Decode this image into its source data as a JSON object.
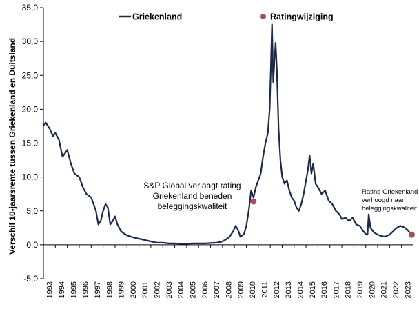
{
  "chart_data": {
    "type": "line",
    "title": "",
    "ylabel": "Verschil 10-jaarsrente tussen Griekenland en Duitsland",
    "xlabel": "",
    "ylim": [
      -5,
      35
    ],
    "yticks": [
      "-5,0",
      "0,0",
      "5,0",
      "10,0",
      "15,0",
      "20,0",
      "25,0",
      "30,0",
      "35,0"
    ],
    "ytick_values": [
      -5,
      0,
      5,
      10,
      15,
      20,
      25,
      30,
      35
    ],
    "xlim": [
      1993,
      2024
    ],
    "xticks": [
      "1993",
      "1994",
      "1995",
      "1996",
      "1997",
      "1998",
      "1999",
      "2000",
      "2001",
      "2002",
      "2003",
      "2004",
      "2005",
      "2006",
      "2007",
      "2008",
      "2009",
      "2010",
      "2011",
      "2012",
      "2013",
      "2014",
      "2015",
      "2016",
      "2017",
      "2018",
      "2019",
      "2020",
      "2021",
      "2022",
      "2023"
    ],
    "grid": false,
    "legend": "top-left",
    "colors": {
      "line": "#1b2a4a",
      "marker": "#a0505e"
    },
    "series": [
      {
        "name": "Griekenland",
        "x": [
          1993.0,
          1993.2,
          1993.5,
          1993.8,
          1994.0,
          1994.3,
          1994.6,
          1994.8,
          1995.0,
          1995.3,
          1995.6,
          1996.0,
          1996.3,
          1996.6,
          1997.0,
          1997.2,
          1997.4,
          1997.6,
          1997.8,
          1998.0,
          1998.2,
          1998.4,
          1998.6,
          1998.8,
          1999.0,
          1999.2,
          1999.5,
          1999.8,
          2000.0,
          2000.5,
          2001.0,
          2001.5,
          2002.0,
          2002.5,
          2003.0,
          2003.5,
          2004.0,
          2004.5,
          2005.0,
          2005.5,
          2006.0,
          2006.5,
          2007.0,
          2007.5,
          2008.0,
          2008.3,
          2008.6,
          2008.9,
          2009.1,
          2009.3,
          2009.5,
          2009.8,
          2010.0,
          2010.2,
          2010.4,
          2010.6,
          2010.8,
          2011.0,
          2011.2,
          2011.4,
          2011.6,
          2011.8,
          2011.95,
          2012.05,
          2012.15,
          2012.25,
          2012.35,
          2012.45,
          2012.55,
          2012.7,
          2012.85,
          2013.0,
          2013.2,
          2013.4,
          2013.6,
          2013.8,
          2014.0,
          2014.2,
          2014.4,
          2014.6,
          2014.8,
          2015.0,
          2015.15,
          2015.3,
          2015.45,
          2015.6,
          2015.8,
          2016.0,
          2016.3,
          2016.6,
          2016.9,
          2017.2,
          2017.5,
          2017.8,
          2018.0,
          2018.3,
          2018.6,
          2018.9,
          2019.2,
          2019.5,
          2019.8,
          2020.0,
          2020.15,
          2020.25,
          2020.4,
          2020.7,
          2021.0,
          2021.3,
          2021.6,
          2022.0,
          2022.3,
          2022.6,
          2022.9,
          2023.2,
          2023.5,
          2023.8
        ],
        "values": [
          17.6,
          18.0,
          17.2,
          16.0,
          16.5,
          15.5,
          13.0,
          13.5,
          14.0,
          12.0,
          10.5,
          10.0,
          8.5,
          7.5,
          7.0,
          6.0,
          5.0,
          3.0,
          3.5,
          5.0,
          6.0,
          5.5,
          3.0,
          3.5,
          4.2,
          3.0,
          2.0,
          1.6,
          1.4,
          1.1,
          0.9,
          0.7,
          0.5,
          0.3,
          0.3,
          0.2,
          0.2,
          0.15,
          0.15,
          0.2,
          0.2,
          0.2,
          0.25,
          0.3,
          0.5,
          0.8,
          1.2,
          2.0,
          2.8,
          2.2,
          1.2,
          1.6,
          2.8,
          5.0,
          8.0,
          7.0,
          8.5,
          9.5,
          10.5,
          13.0,
          15.0,
          16.5,
          20.0,
          26.0,
          32.5,
          24.0,
          27.0,
          29.8,
          26.0,
          17.0,
          12.5,
          10.0,
          9.0,
          9.5,
          8.0,
          7.0,
          6.5,
          5.5,
          5.0,
          6.0,
          7.5,
          9.5,
          11.0,
          13.2,
          10.5,
          12.0,
          9.0,
          8.5,
          7.5,
          8.0,
          6.5,
          6.0,
          5.0,
          4.5,
          3.8,
          4.0,
          3.5,
          4.0,
          3.0,
          2.8,
          2.0,
          1.6,
          1.5,
          4.5,
          2.5,
          1.8,
          1.5,
          1.3,
          1.2,
          1.5,
          2.0,
          2.5,
          2.8,
          2.6,
          2.2,
          1.6
        ]
      }
    ],
    "markers": [
      {
        "name": "Ratingwijziging",
        "x": 2010.6,
        "y": 6.4
      },
      {
        "name": "Ratingwijziging",
        "x": 2023.85,
        "y": 1.5
      }
    ],
    "legend_entries": [
      {
        "label": "Griekenland",
        "kind": "line"
      },
      {
        "label": "Ratingwijziging",
        "kind": "marker"
      }
    ],
    "annotations": [
      {
        "lines": [
          "S&P Global verlaagt rating",
          "Griekenland beneden",
          "beleggingskwaliteit"
        ]
      },
      {
        "lines": [
          "Rating Griekenland",
          "verhoogd naar",
          "beleggingskwaliteit"
        ]
      }
    ]
  }
}
